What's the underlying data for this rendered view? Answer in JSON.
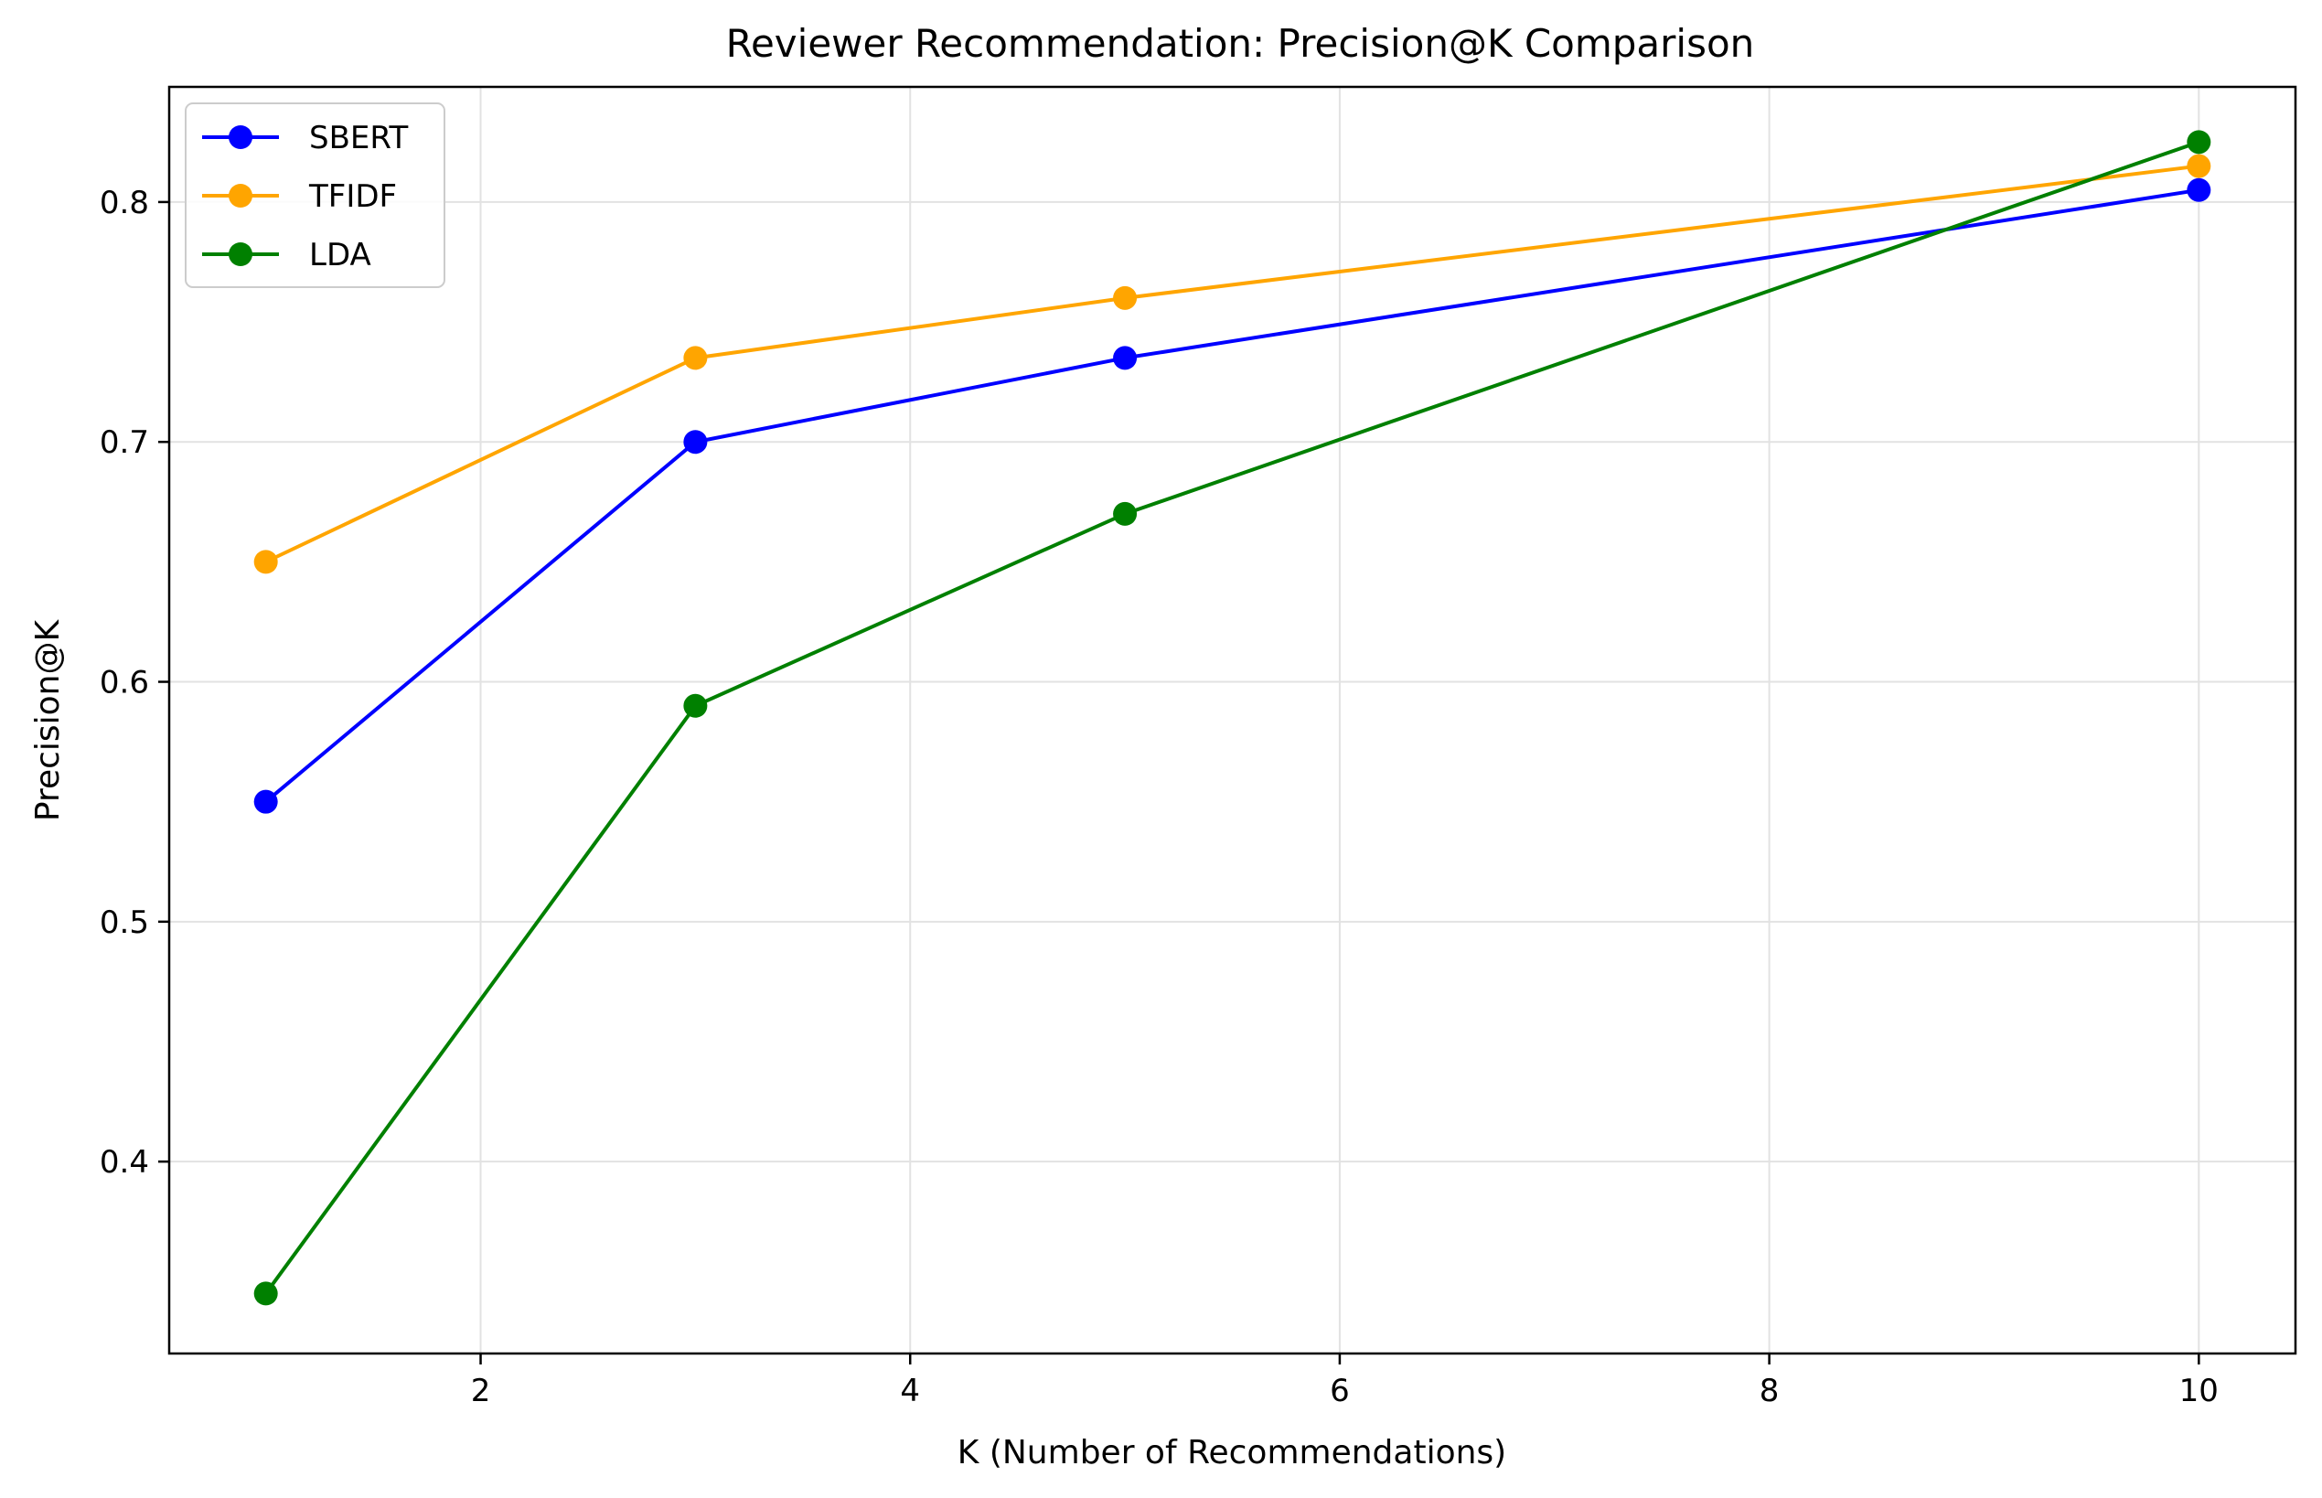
{
  "chart_data": {
    "type": "line",
    "title": "Reviewer Recommendation: Precision@K Comparison",
    "xlabel": "K (Number of Recommendations)",
    "ylabel": "Precision@K",
    "xlim": [
      0.55,
      10.45
    ],
    "ylim": [
      0.32,
      0.848
    ],
    "xticks": [
      2,
      4,
      6,
      8,
      10
    ],
    "yticks": [
      0.4,
      0.5,
      0.6,
      0.7,
      0.8
    ],
    "xtick_labels": [
      "2",
      "4",
      "6",
      "8",
      "10"
    ],
    "ytick_labels": [
      "0.4",
      "0.5",
      "0.6",
      "0.7",
      "0.8"
    ],
    "grid": true,
    "legend_position": "top-left",
    "x": [
      1,
      3,
      5,
      10
    ],
    "series": [
      {
        "name": "SBERT",
        "color": "#0000ff",
        "values": [
          0.55,
          0.7,
          0.735,
          0.805
        ]
      },
      {
        "name": "TFIDF",
        "color": "#ffa500",
        "values": [
          0.65,
          0.735,
          0.76,
          0.815
        ]
      },
      {
        "name": "LDA",
        "color": "#008000",
        "values": [
          0.345,
          0.59,
          0.67,
          0.825
        ]
      }
    ]
  }
}
